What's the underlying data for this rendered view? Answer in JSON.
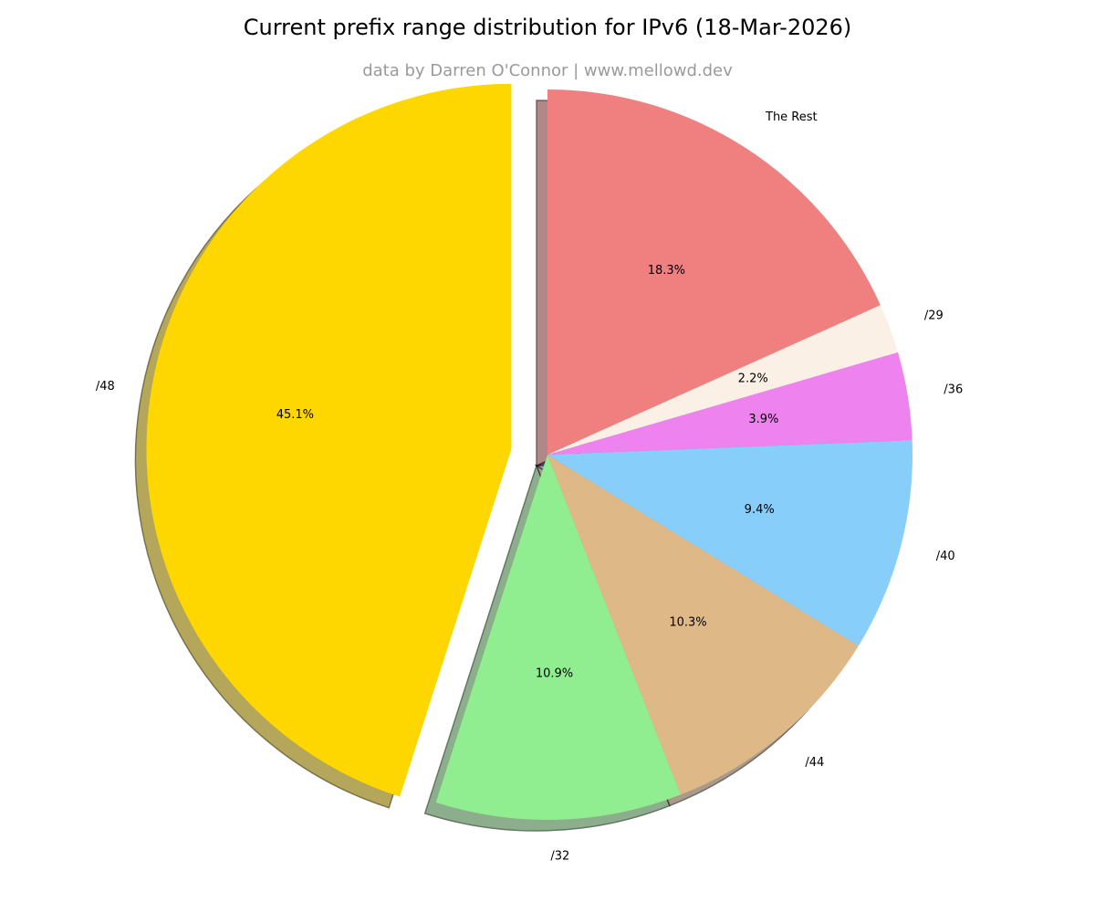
{
  "title": "Current prefix range distribution for IPv6 (18-Mar-2026)",
  "subtitle": "data by Darren O'Connor | www.mellowd.dev",
  "chart_data": {
    "type": "pie",
    "start_angle_deg": 90,
    "direction": "counterclockwise",
    "shadow": true,
    "slices": [
      {
        "label": "/48",
        "value": 45.1,
        "pct_label": "45.1%",
        "color": "#FFD700",
        "exploded": true
      },
      {
        "label": "/32",
        "value": 10.9,
        "pct_label": "10.9%",
        "color": "#90EE90",
        "exploded": false
      },
      {
        "label": "/44",
        "value": 10.3,
        "pct_label": "10.3%",
        "color": "#DEB887",
        "exploded": false
      },
      {
        "label": "/40",
        "value": 9.4,
        "pct_label": "9.4%",
        "color": "#87CEFA",
        "exploded": false
      },
      {
        "label": "/36",
        "value": 3.9,
        "pct_label": "3.9%",
        "color": "#EE82EE",
        "exploded": false
      },
      {
        "label": "/29",
        "value": 2.2,
        "pct_label": "2.2%",
        "color": "#FAF0E6",
        "exploded": false
      },
      {
        "label": "The Rest",
        "value": 18.3,
        "pct_label": "18.3%",
        "color": "#F08080",
        "exploded": false
      }
    ]
  }
}
